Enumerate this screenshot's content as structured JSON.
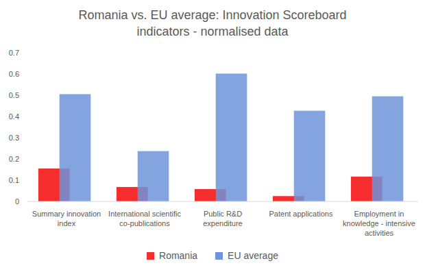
{
  "chart_data": {
    "type": "bar",
    "title": "Romania vs. EU average: Innovation Scoreboard indicators - normalised data",
    "categories": [
      "Summary innovation index",
      "International scientific co-publications",
      "Public R&D expenditure",
      "Patent applications",
      "Employment in knowledge - intensive activities"
    ],
    "series": [
      {
        "name": "Romania",
        "color": "#f52d2d",
        "values": [
          0.155,
          0.068,
          0.058,
          0.025,
          0.117
        ]
      },
      {
        "name": "EU average",
        "color": "#6f94d9",
        "values": [
          0.505,
          0.237,
          0.602,
          0.427,
          0.495
        ]
      }
    ],
    "ylim": [
      0,
      0.7
    ],
    "yticks": [
      0,
      0.1,
      0.2,
      0.3,
      0.4,
      0.5,
      0.6,
      0.7
    ],
    "grid": false,
    "legend": "bottom"
  }
}
